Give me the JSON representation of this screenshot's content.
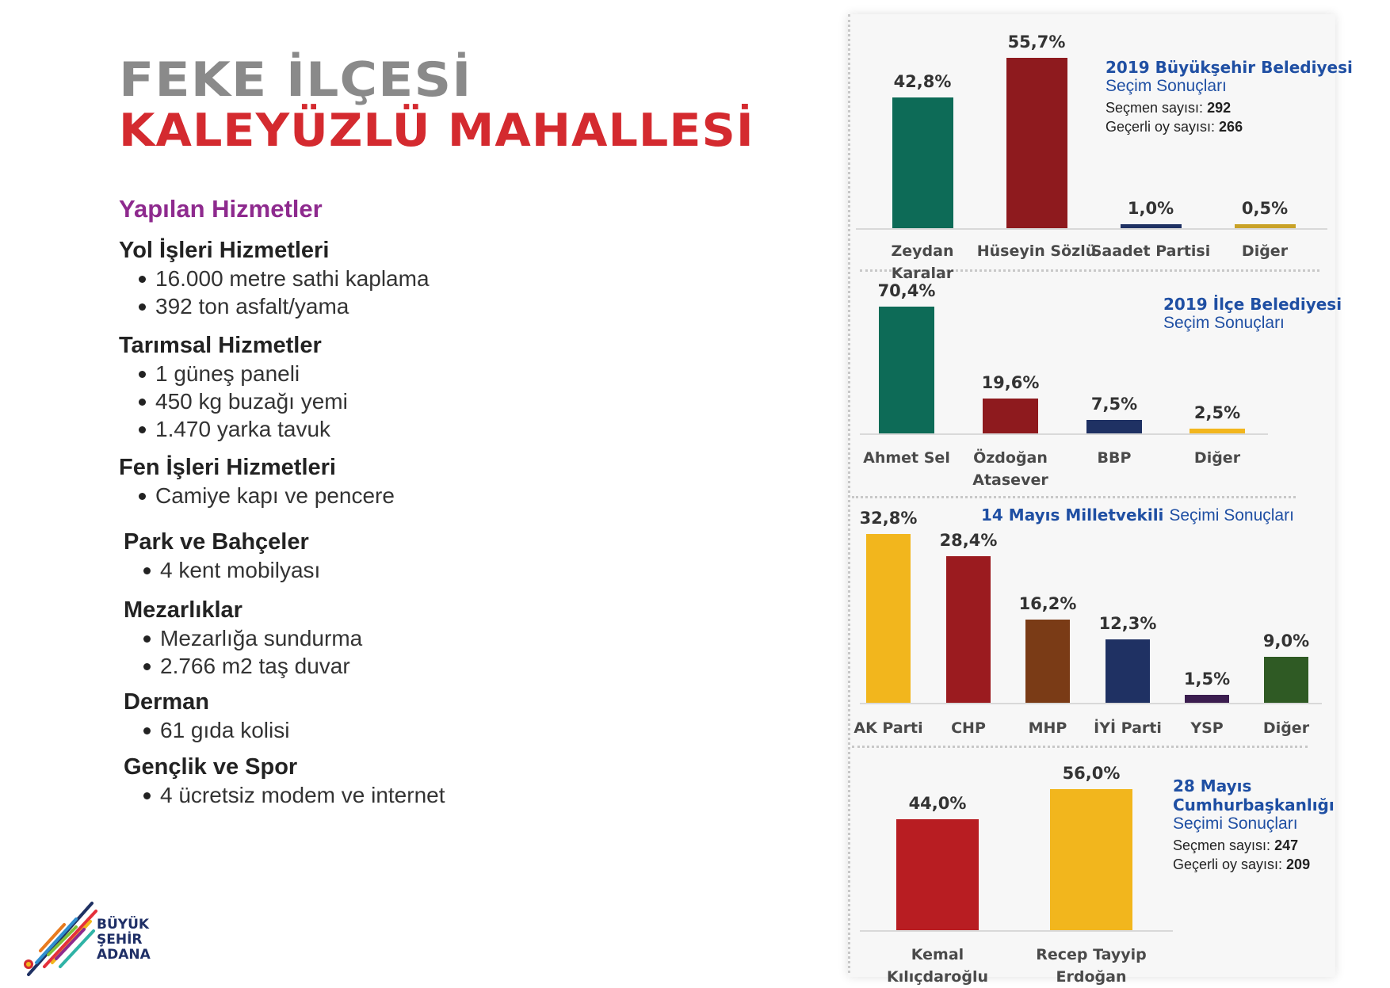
{
  "header": {
    "title_line1": "FEKE İLÇESİ",
    "title_line2": "KALEYÜZLÜ MAHALLESİ"
  },
  "services": {
    "heading": "Yapılan Hizmetler",
    "groups": [
      {
        "title": "Yol İşleri Hizmetleri",
        "items": [
          "16.000 metre sathi kaplama",
          "392 ton asfalt/yama"
        ]
      },
      {
        "title": "Tarımsal Hizmetler",
        "items": [
          "1 güneş paneli",
          "450 kg buzağı yemi",
          "1.470 yarka tavuk"
        ]
      },
      {
        "title": "Fen İşleri Hizmetleri",
        "items": [
          "Camiye kapı ve pencere"
        ]
      },
      {
        "title": "Park ve Bahçeler",
        "items": [
          "4 kent mobilyası"
        ]
      },
      {
        "title": "Mezarlıklar",
        "items": [
          "Mezarlığa sundurma",
          "2.766 m2 taş duvar"
        ]
      },
      {
        "title": "Derman",
        "items": [
          "61 gıda kolisi"
        ]
      },
      {
        "title": "Gençlik ve Spor",
        "items": [
          "4 ücretsiz modem ve internet"
        ]
      }
    ]
  },
  "logo": {
    "line1": "BÜYÜK",
    "line2": "ŞEHİR",
    "line3": "ADANA"
  },
  "colors": {
    "green": "#0d6b57",
    "darkred": "#8e1a1e",
    "navy": "#1f3163",
    "gold": "#f2b61d",
    "red": "#b81d22",
    "brown": "#7a3b16",
    "purple": "#3b1d4f",
    "olive": "#2f5a24",
    "title_grey": "#8a8a8a",
    "title_red": "#d42a2f",
    "heading_purple": "#8e2a8e",
    "info_blue": "#1f4fa3"
  },
  "chart_data": [
    {
      "type": "bar",
      "title": "2019 Büyükşehir Belediyesi",
      "subtitle": "Seçim Sonuçları",
      "stats": [
        {
          "label": "Seçmen sayısı:",
          "value": "292"
        },
        {
          "label": "Geçerli oy sayısı:",
          "value": "266"
        }
      ],
      "categories": [
        "Zeydan Karalar",
        "Hüseyin Sözlü",
        "Saadet Partisi",
        "Diğer"
      ],
      "values": [
        42.8,
        55.7,
        1.0,
        0.5
      ],
      "labels": [
        "42,8%",
        "55,7%",
        "1,0%",
        "0,5%"
      ],
      "colors": [
        "#0d6b57",
        "#8e1a1e",
        "#1f3163",
        "#c9a227"
      ]
    },
    {
      "type": "bar",
      "title": "2019 İlçe Belediyesi",
      "subtitle": "Seçim Sonuçları",
      "categories": [
        "Ahmet Sel",
        "Özdoğan Atasever",
        "BBP",
        "Diğer"
      ],
      "category_lines": [
        [
          "Ahmet Sel"
        ],
        [
          "Özdoğan",
          "Atasever"
        ],
        [
          "BBP"
        ],
        [
          "Diğer"
        ]
      ],
      "values": [
        70.4,
        19.6,
        7.5,
        2.5
      ],
      "labels": [
        "70,4%",
        "19,6%",
        "7,5%",
        "2,5%"
      ],
      "colors": [
        "#0d6b57",
        "#8e1a1e",
        "#1f3163",
        "#f2b61d"
      ]
    },
    {
      "type": "bar",
      "title": "14 Mayıs Milletvekili",
      "subtitle": "Seçimi Sonuçları",
      "categories": [
        "AK Parti",
        "CHP",
        "MHP",
        "İYİ Parti",
        "YSP",
        "Diğer"
      ],
      "values": [
        32.8,
        28.4,
        16.2,
        12.3,
        1.5,
        9.0
      ],
      "labels": [
        "32,8%",
        "28,4%",
        "16,2%",
        "12,3%",
        "1,5%",
        "9,0%"
      ],
      "colors": [
        "#f2b61d",
        "#9b1b1f",
        "#7a3b16",
        "#1f3163",
        "#3b1d4f",
        "#2f5a24"
      ]
    },
    {
      "type": "bar",
      "title": "28 Mayıs Cumhurbaşkanlığı",
      "subtitle": "Seçimi Sonuçları",
      "stats": [
        {
          "label": "Seçmen sayısı:",
          "value": "247"
        },
        {
          "label": "Geçerli oy sayısı:",
          "value": "209"
        }
      ],
      "categories": [
        "Kemal Kılıçdaroğlu",
        "Recep Tayyip Erdoğan"
      ],
      "values": [
        44.0,
        56.0
      ],
      "labels": [
        "44,0%",
        "56,0%"
      ],
      "colors": [
        "#b81d22",
        "#f2b61d"
      ]
    }
  ]
}
